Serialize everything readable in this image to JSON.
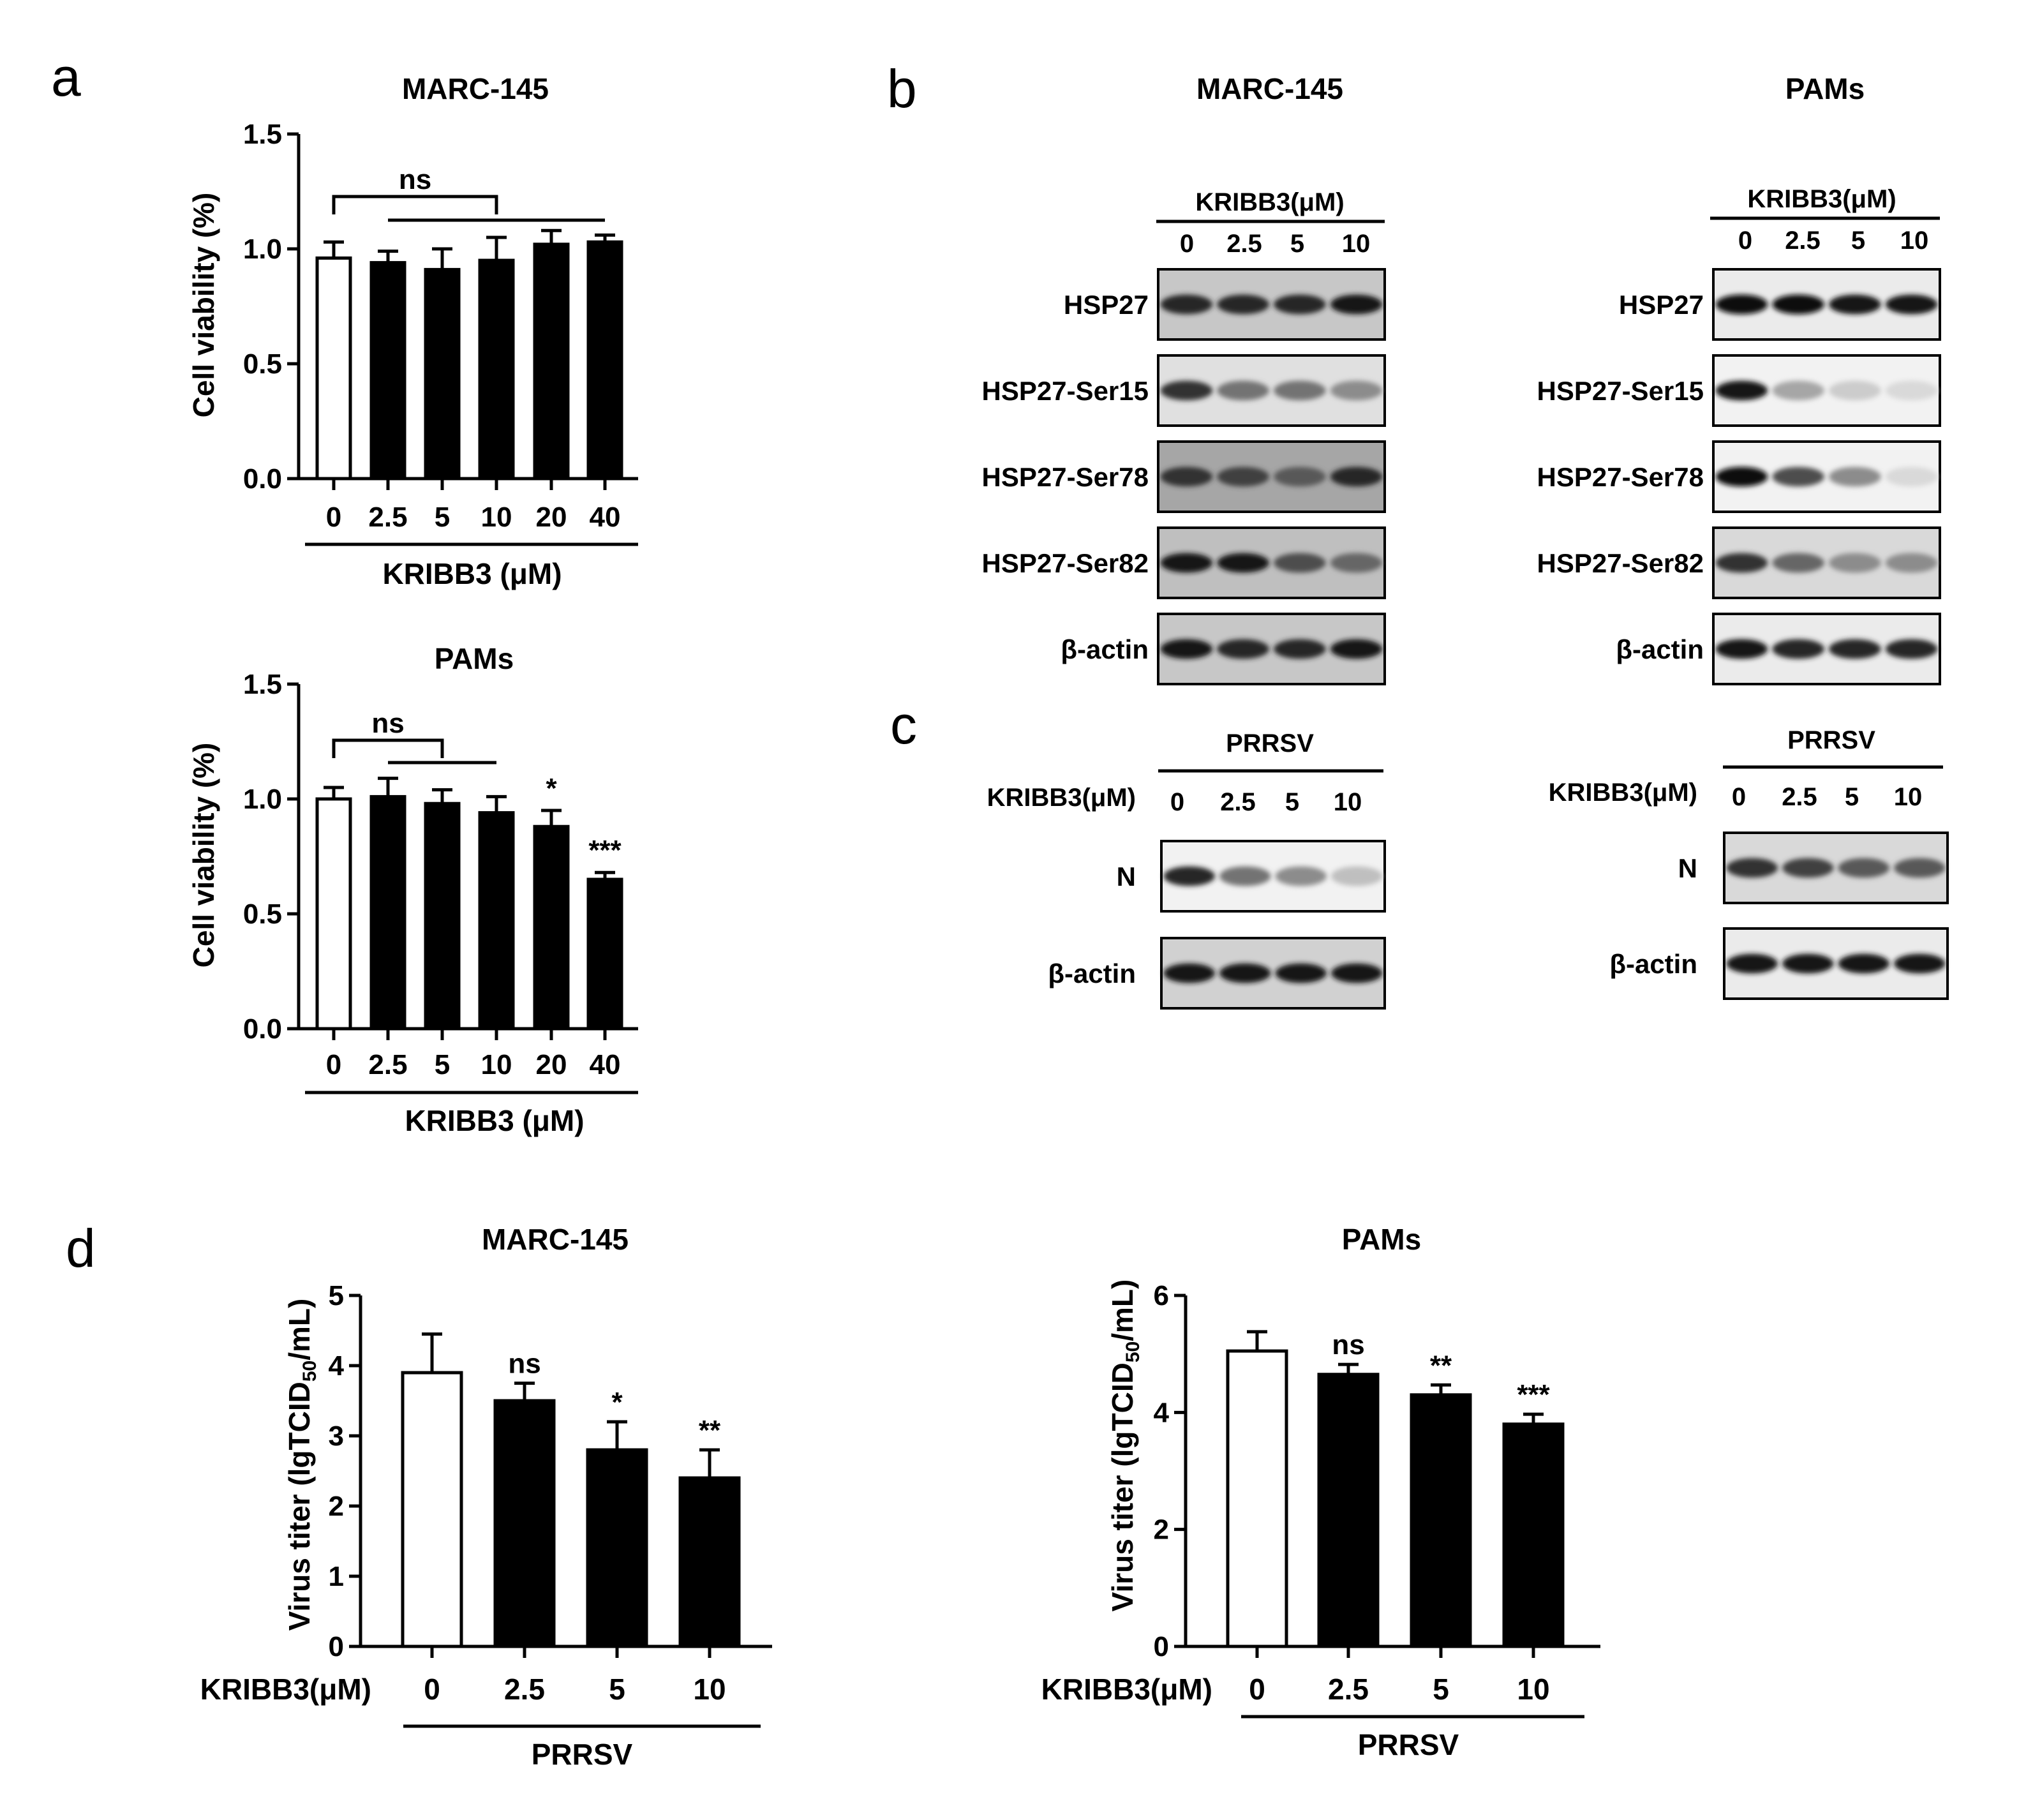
{
  "panel_letters": {
    "a": "a",
    "b": "b",
    "c": "c",
    "d": "d"
  },
  "chart_data": [
    {
      "id": "a_marc",
      "type": "bar",
      "panel": "a",
      "title": "MARC-145",
      "ylabel": "Cell viability (%)",
      "xlabel": "KRIBB3 (μM)",
      "categories": [
        "0",
        "2.5",
        "5",
        "10",
        "20",
        "40"
      ],
      "values": [
        0.96,
        0.94,
        0.91,
        0.95,
        1.02,
        1.03
      ],
      "errors": [
        0.07,
        0.05,
        0.09,
        0.1,
        0.06,
        0.03
      ],
      "fills": [
        "#ffffff",
        "#000000",
        "#000000",
        "#000000",
        "#000000",
        "#000000"
      ],
      "ylim": [
        0,
        1.5
      ],
      "yticks": [
        "0.0",
        "0.5",
        "1.0",
        "1.5"
      ],
      "significance": [
        "",
        "",
        "",
        "",
        "",
        ""
      ],
      "brackets": [
        {
          "from": 0,
          "to": 3,
          "label": "ns",
          "line2_from": 1,
          "line2_to": 5
        }
      ]
    },
    {
      "id": "a_pams",
      "type": "bar",
      "panel": "a",
      "title": "PAMs",
      "ylabel": "Cell viability (%)",
      "xlabel": "KRIBB3 (μM)",
      "categories": [
        "0",
        "2.5",
        "5",
        "10",
        "20",
        "40"
      ],
      "values": [
        1.0,
        1.01,
        0.98,
        0.94,
        0.88,
        0.65
      ],
      "errors": [
        0.05,
        0.08,
        0.06,
        0.07,
        0.07,
        0.03
      ],
      "fills": [
        "#ffffff",
        "#000000",
        "#000000",
        "#000000",
        "#000000",
        "#000000"
      ],
      "ylim": [
        0,
        1.5
      ],
      "yticks": [
        "0.0",
        "0.5",
        "1.0",
        "1.5"
      ],
      "significance": [
        "",
        "",
        "",
        "",
        "*",
        "***"
      ],
      "brackets": [
        {
          "from": 0,
          "to": 2,
          "label": "ns",
          "line2_from": 1,
          "line2_to": 3
        }
      ]
    },
    {
      "id": "d_marc",
      "type": "bar",
      "panel": "d",
      "title": "MARC-145",
      "ylabel_main": "Virus titer (lgTCID",
      "ylabel_sub": "50",
      "ylabel_end": "/mL)",
      "row_label": "KRIBB3(μM)",
      "group_label": "PRRSV",
      "categories": [
        "0",
        "2.5",
        "5",
        "10"
      ],
      "values": [
        3.9,
        3.5,
        2.8,
        2.4
      ],
      "errors": [
        0.55,
        0.25,
        0.4,
        0.4
      ],
      "fills": [
        "#ffffff",
        "#000000",
        "#000000",
        "#000000"
      ],
      "ylim": [
        0,
        5
      ],
      "yticks": [
        "0",
        "1",
        "2",
        "3",
        "4",
        "5"
      ],
      "significance": [
        "",
        "ns",
        "*",
        "**"
      ],
      "brackets": []
    },
    {
      "id": "d_pams",
      "type": "bar",
      "panel": "d",
      "title": "PAMs",
      "ylabel_main": "Virus titer (lgTCID",
      "ylabel_sub": "50",
      "ylabel_end": "/mL)",
      "row_label": "KRIBB3(μM)",
      "group_label": "PRRSV",
      "categories": [
        "0",
        "2.5",
        "5",
        "10"
      ],
      "values": [
        5.05,
        4.65,
        4.3,
        3.8
      ],
      "errors": [
        0.33,
        0.17,
        0.17,
        0.17
      ],
      "fills": [
        "#ffffff",
        "#000000",
        "#000000",
        "#000000"
      ],
      "ylim": [
        0,
        6
      ],
      "yticks": [
        "0",
        "2",
        "4",
        "6"
      ],
      "significance": [
        "",
        "ns",
        "**",
        "***"
      ],
      "brackets": []
    }
  ],
  "blots": {
    "b": [
      {
        "id": "b_marc",
        "title": "MARC-145",
        "header": "KRIBB3(μM)",
        "lanes": [
          "0",
          "2.5",
          "5",
          "10"
        ],
        "rows": [
          {
            "label": "HSP27",
            "intensity": [
              0.85,
              0.85,
              0.85,
              0.9
            ],
            "bg": 0.22
          },
          {
            "label": "HSP27-Ser15",
            "intensity": [
              0.8,
              0.55,
              0.55,
              0.45
            ],
            "bg": 0.12
          },
          {
            "label": "HSP27-Ser78",
            "intensity": [
              0.8,
              0.75,
              0.65,
              0.85
            ],
            "bg": 0.35
          },
          {
            "label": "HSP27-Ser82",
            "intensity": [
              0.9,
              0.9,
              0.7,
              0.6
            ],
            "bg": 0.25
          },
          {
            "label": "β-actin",
            "intensity": [
              0.9,
              0.85,
              0.85,
              0.9
            ],
            "bg": 0.22
          }
        ]
      },
      {
        "id": "b_pams",
        "title": "PAMs",
        "header": "KRIBB3(μM)",
        "lanes": [
          "0",
          "2.5",
          "5",
          "10"
        ],
        "rows": [
          {
            "label": "HSP27",
            "intensity": [
              0.95,
              0.95,
              0.9,
              0.9
            ],
            "bg": 0.08
          },
          {
            "label": "HSP27-Ser15",
            "intensity": [
              0.9,
              0.35,
              0.2,
              0.15
            ],
            "bg": 0.05
          },
          {
            "label": "HSP27-Ser78",
            "intensity": [
              0.95,
              0.7,
              0.45,
              0.15
            ],
            "bg": 0.05
          },
          {
            "label": "HSP27-Ser82",
            "intensity": [
              0.8,
              0.6,
              0.45,
              0.45
            ],
            "bg": 0.15
          },
          {
            "label": "β-actin",
            "intensity": [
              0.9,
              0.85,
              0.85,
              0.85
            ],
            "bg": 0.08
          }
        ]
      }
    ],
    "c": [
      {
        "id": "c_marc",
        "header": "PRRSV",
        "row_header": "KRIBB3(μM)",
        "lanes": [
          "0",
          "2.5",
          "5",
          "10"
        ],
        "rows": [
          {
            "label": "N",
            "intensity": [
              0.85,
              0.55,
              0.45,
              0.25
            ],
            "bg": 0.05
          },
          {
            "label": "β-actin",
            "intensity": [
              0.9,
              0.9,
              0.9,
              0.9
            ],
            "bg": 0.18
          }
        ]
      },
      {
        "id": "c_pams",
        "header": "PRRSV",
        "row_header": "KRIBB3(μM)",
        "lanes": [
          "0",
          "2.5",
          "5",
          "10"
        ],
        "rows": [
          {
            "label": "N",
            "intensity": [
              0.8,
              0.75,
              0.65,
              0.65
            ],
            "bg": 0.15
          },
          {
            "label": "β-actin",
            "intensity": [
              0.9,
              0.9,
              0.9,
              0.9
            ],
            "bg": 0.08
          }
        ]
      }
    ]
  }
}
